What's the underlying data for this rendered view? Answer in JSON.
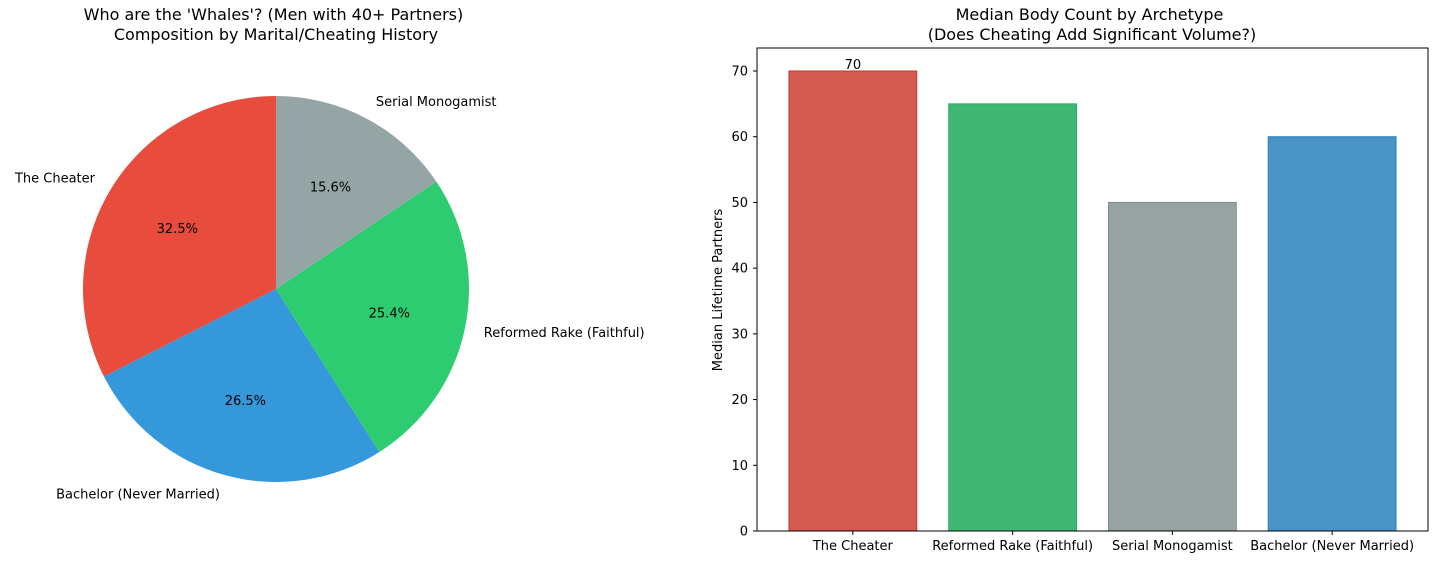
{
  "chart_data": [
    {
      "type": "pie",
      "title": "Who are the 'Whales'? (Men with 40+ Partners)\nComposition by Marital/Cheating History",
      "start_angle_deg": 90,
      "direction": "counterclockwise",
      "slices": [
        {
          "label": "The Cheater",
          "value": 32.5,
          "pct_label": "32.5%",
          "color": "#e74c3c"
        },
        {
          "label": "Bachelor (Never Married)",
          "value": 26.5,
          "pct_label": "26.5%",
          "color": "#3498db"
        },
        {
          "label": "Reformed Rake (Faithful)",
          "value": 25.4,
          "pct_label": "25.4%",
          "color": "#2ecc71"
        },
        {
          "label": "Serial Monogamist",
          "value": 15.6,
          "pct_label": "15.6%",
          "color": "#95a5a6"
        }
      ]
    },
    {
      "type": "bar",
      "title": "Median Body Count by Archetype\n(Does Cheating Add Significant Volume?)",
      "xlabel": "",
      "ylabel": "Median Lifetime Partners",
      "ylim": [
        0,
        73.5
      ],
      "yticks": [
        0,
        10,
        20,
        30,
        40,
        50,
        60,
        70
      ],
      "categories": [
        "The Cheater",
        "Reformed Rake (Faithful)",
        "Serial Monogamist",
        "Bachelor (Never Married)"
      ],
      "values": [
        70,
        65,
        50,
        60
      ],
      "colors": [
        "#d35b52",
        "#41b775",
        "#97a3a2",
        "#4a93c6"
      ],
      "edge_colors": [
        "#c0392b",
        "#27ae60",
        "#7f8c8d",
        "#2980b9"
      ],
      "data_labels": [
        {
          "index": 0,
          "text": "70"
        }
      ],
      "grid": false,
      "legend": "none"
    }
  ]
}
